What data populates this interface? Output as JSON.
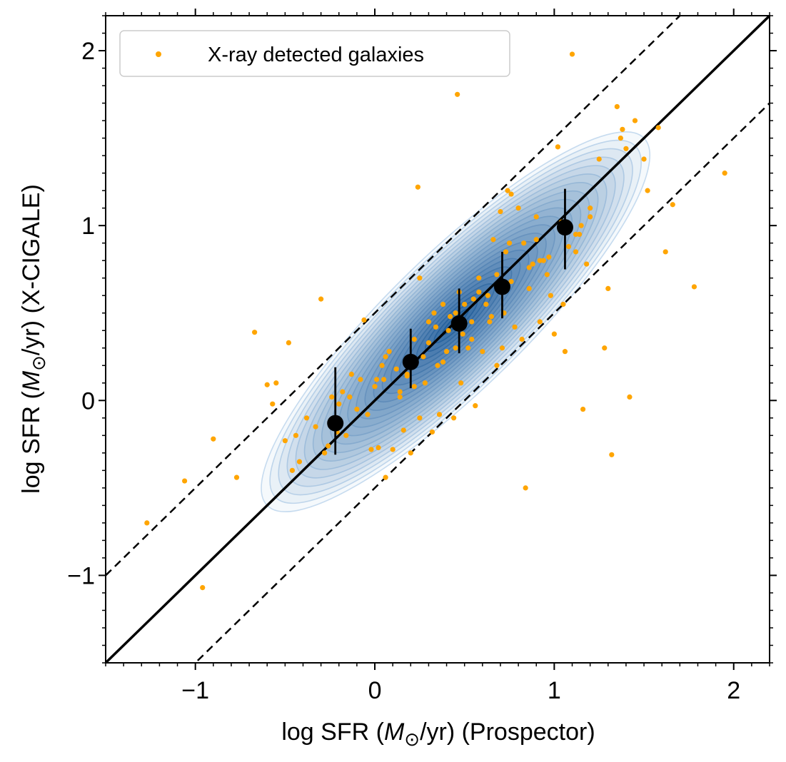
{
  "chart_data": {
    "type": "scatter",
    "title": "",
    "xlabel": {
      "prefix": "log SFR (",
      "symbol": "M",
      "sub": "⊙",
      "suffix": "/yr) (Prospector)"
    },
    "ylabel": {
      "prefix": "log SFR (",
      "symbol": "M",
      "sub": "⊙",
      "suffix": "/yr) (X-CIGALE)"
    },
    "xlim": [
      -1.5,
      2.2
    ],
    "ylim": [
      -1.5,
      2.2
    ],
    "xticks": [
      {
        "value": -1,
        "label": "−1"
      },
      {
        "value": 0,
        "label": "0"
      },
      {
        "value": 1,
        "label": "1"
      },
      {
        "value": 2,
        "label": "2"
      }
    ],
    "yticks": [
      {
        "value": -1,
        "label": "−1"
      },
      {
        "value": 0,
        "label": "0"
      },
      {
        "value": 1,
        "label": "1"
      },
      {
        "value": 2,
        "label": "2"
      }
    ],
    "grid": false,
    "legend": {
      "position": "upper-left",
      "entries": [
        "X-ray detected galaxies"
      ]
    },
    "lines": [
      {
        "name": "one-to-one",
        "style": "solid",
        "offset": 0
      },
      {
        "name": "upper-offset",
        "style": "dashed",
        "offset": 0.5
      },
      {
        "name": "lower-offset",
        "style": "dashed",
        "offset": -0.5
      }
    ],
    "binned_medians": {
      "x": [
        -0.22,
        0.2,
        0.47,
        0.71,
        1.06
      ],
      "y": [
        -0.13,
        0.22,
        0.44,
        0.65,
        0.99
      ],
      "y_low": [
        -0.31,
        0.07,
        0.27,
        0.47,
        0.75
      ],
      "y_high": [
        0.19,
        0.41,
        0.64,
        0.85,
        1.21
      ],
      "color": "#000000"
    },
    "density": {
      "description_center": [
        0.45,
        0.45
      ],
      "color_low": "#c6dbef",
      "color_high": "#1f5c99"
    },
    "series": [
      {
        "name": "X-ray detected galaxies",
        "color": "#ffa500",
        "x": [
          -1.27,
          -1.06,
          -0.96,
          -0.9,
          -0.77,
          -0.67,
          -0.6,
          -0.57,
          -0.55,
          -0.5,
          -0.48,
          -0.46,
          -0.44,
          -0.42,
          -0.38,
          -0.33,
          -0.3,
          -0.28,
          -0.26,
          -0.24,
          -0.21,
          -0.18,
          -0.16,
          -0.13,
          -0.1,
          -0.08,
          -0.06,
          -0.04,
          -0.02,
          0,
          0.02,
          0.04,
          0.06,
          0.08,
          0.1,
          0.12,
          0.14,
          0.16,
          0.18,
          0.2,
          0.22,
          0.24,
          0.25,
          0.27,
          0.28,
          0.3,
          0.32,
          0.34,
          0.35,
          0.36,
          0.38,
          0.4,
          0.42,
          0.44,
          0.45,
          0.46,
          0.47,
          0.48,
          0.5,
          0.52,
          0.54,
          0.55,
          0.56,
          0.58,
          0.6,
          0.62,
          0.64,
          0.66,
          0.68,
          0.7,
          0.71,
          0.72,
          0.73,
          0.74,
          0.75,
          0.76,
          0.78,
          0.8,
          0.82,
          0.84,
          0.86,
          0.88,
          0.9,
          0.92,
          0.94,
          0.96,
          0.98,
          1,
          1.02,
          1.04,
          1.05,
          1.06,
          1.08,
          1.1,
          1.12,
          1.14,
          1.16,
          1.18,
          1.2,
          1.25,
          1.28,
          1.3,
          1.32,
          1.35,
          1.38,
          1.4,
          1.42,
          1.45,
          1.5,
          1.52,
          1.58,
          1.62,
          1.66,
          1.78,
          1.95,
          0.45,
          0.25,
          1.12,
          0.83,
          0.3,
          0.06,
          0.65,
          0.92,
          1.15,
          0.58,
          0.18,
          -0.14,
          0.76,
          1.37,
          0.41,
          0.54,
          0.97,
          0.14,
          0.33,
          0.86,
          -0.2,
          0.01,
          0.63,
          1.2,
          0.49,
          0.22,
          0.38,
          0.68,
          0.9,
          0.05
        ],
        "y": [
          -0.7,
          -0.46,
          -1.07,
          -0.22,
          -0.44,
          0.39,
          0.09,
          -0.02,
          0.1,
          -0.23,
          0.33,
          -0.4,
          -0.2,
          -0.35,
          -0.1,
          -0.15,
          0.58,
          -0.3,
          -0.26,
          0.02,
          -0.18,
          0.05,
          -0.2,
          0.15,
          -0.05,
          0.12,
          0.46,
          -0.08,
          -0.28,
          0.08,
          -0.27,
          0.2,
          -0.44,
          0.28,
          -0.28,
          0.18,
          0.05,
          -0.17,
          0.14,
          -0.3,
          0.35,
          1.22,
          -0.1,
          0.25,
          0.1,
          0.33,
          -0.18,
          0.42,
          0.2,
          -0.08,
          0.55,
          0.28,
          0.48,
          -0.1,
          0.3,
          1.75,
          0.62,
          0.1,
          0.55,
          0.3,
          0.45,
          0.58,
          -0.03,
          0.7,
          0.28,
          0.55,
          0.45,
          0.92,
          0.2,
          1.08,
          0.3,
          0.5,
          0.85,
          1.2,
          0.9,
          1.18,
          0.42,
          1.1,
          0.35,
          -0.5,
          0.64,
          0.78,
          1.05,
          0.45,
          0.8,
          0.72,
          0.6,
          0.38,
          1.45,
          1.02,
          0.55,
          0.28,
          0.88,
          1.98,
          0.85,
          0.95,
          -0.05,
          0.78,
          1.1,
          1.38,
          0.3,
          0.64,
          -0.31,
          1.68,
          1.55,
          1.44,
          0.02,
          1.6,
          1.38,
          1.2,
          1.56,
          0.85,
          1.12,
          0.65,
          1.3,
          0.5,
          0.7,
          0.95,
          0.9,
          0.45,
          0.25,
          0.48,
          0.8,
          1.0,
          0.62,
          0.15,
          0.02,
          0.68,
          1.5,
          0.4,
          0.35,
          0.82,
          0.02,
          0.5,
          0.76,
          -0.02,
          0.12,
          0.6,
          1.05,
          0.38,
          0.08,
          0.22,
          0.72,
          0.92,
          0.12
        ]
      }
    ]
  }
}
